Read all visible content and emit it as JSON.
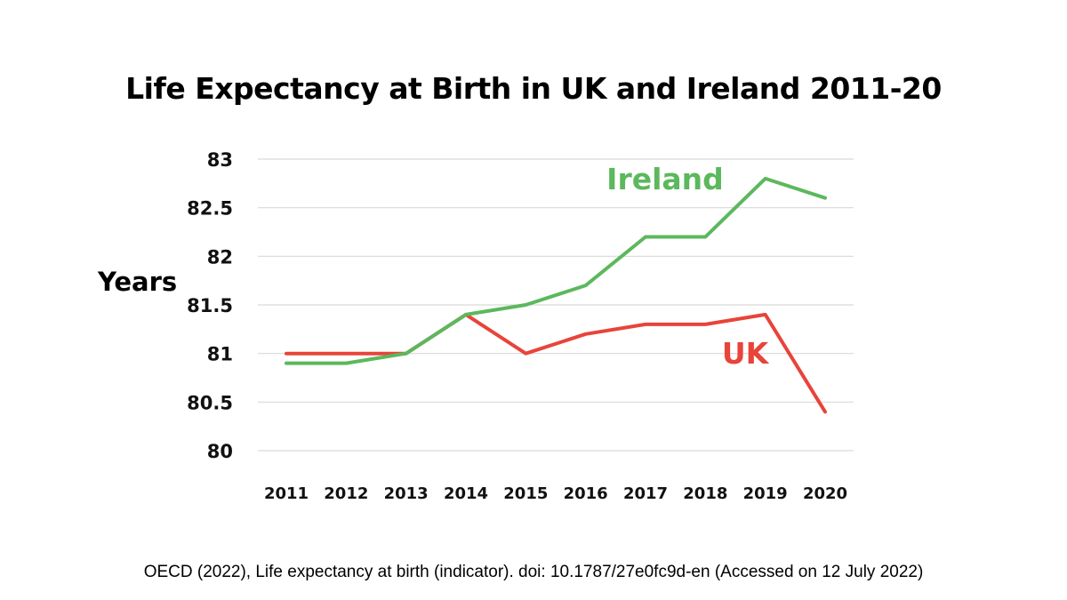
{
  "chart_data": {
    "type": "line",
    "title": "Life Expectancy at Birth in UK and Ireland 2011-20",
    "xlabel": "",
    "ylabel": "Years",
    "ylim": [
      80,
      83
    ],
    "yticks": [
      "83",
      "82.5",
      "82",
      "81.5",
      "81",
      "80.5",
      "80"
    ],
    "ytick_values": [
      83,
      82.5,
      82,
      81.5,
      81,
      80.5,
      80
    ],
    "categories": [
      "2011",
      "2012",
      "2013",
      "2014",
      "2015",
      "2016",
      "2017",
      "2018",
      "2019",
      "2020"
    ],
    "grid": true,
    "legend": "inline labels",
    "series": [
      {
        "name": "Ireland",
        "color": "#5cb85c",
        "values": [
          80.9,
          80.9,
          81.0,
          81.4,
          81.5,
          81.7,
          82.2,
          82.2,
          82.8,
          82.6
        ]
      },
      {
        "name": "UK",
        "color": "#e8443a",
        "values": [
          81.0,
          81.0,
          81.0,
          81.4,
          81.0,
          81.2,
          81.3,
          81.3,
          81.4,
          80.4
        ]
      }
    ]
  },
  "source": "OECD (2022), Life expectancy at birth (indicator). doi: 10.1787/27e0fc9d-en (Accessed on 12 July 2022)"
}
